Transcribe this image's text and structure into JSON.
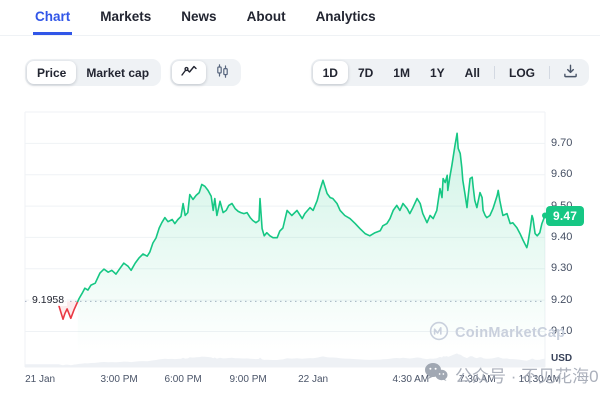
{
  "nav": {
    "items": [
      {
        "label": "Chart",
        "active": true
      },
      {
        "label": "Markets",
        "active": false
      },
      {
        "label": "News",
        "active": false
      },
      {
        "label": "About",
        "active": false
      },
      {
        "label": "Analytics",
        "active": false
      }
    ]
  },
  "controls": {
    "metric_options": [
      "Price",
      "Market cap"
    ],
    "selected_metric": "Price",
    "chart_type_options": [
      "line",
      "candlestick"
    ],
    "selected_chart_type": "line",
    "ranges": [
      "1D",
      "7D",
      "1M",
      "1Y",
      "All"
    ],
    "selected_range": "1D",
    "log_label": "LOG"
  },
  "watermarks": {
    "coinmarketcap": "CoinMarketCap",
    "wechat": "公众号 · 不见花海0"
  },
  "chart_data": {
    "type": "line",
    "ylabel": "USD",
    "ylim": [
      9.05,
      9.8
    ],
    "grid": "horizontal-only",
    "y_ticks": [
      9.7,
      9.6,
      9.5,
      9.4,
      9.3,
      9.2,
      9.1
    ],
    "x_ticks": [
      {
        "label": "21 Jan",
        "t": 0.029
      },
      {
        "label": "3:00 PM",
        "t": 0.181
      },
      {
        "label": "6:00 PM",
        "t": 0.304
      },
      {
        "label": "9:00 PM",
        "t": 0.429
      },
      {
        "label": "22 Jan",
        "t": 0.554
      },
      {
        "label": "4:30 AM",
        "t": 0.742
      },
      {
        "label": "7:30 AM",
        "t": 0.87
      },
      {
        "label": "10:30 AM",
        "t": 0.99
      }
    ],
    "baseline_price": 9.1958,
    "open_price_label": "9.1958",
    "current_price": 9.47,
    "current_price_label": "9.47",
    "colors": {
      "up": "#16c784",
      "down": "#ea3943",
      "grid": "#eff2f5",
      "baseline": "#a9b2c4"
    },
    "points": [
      [
        0.065,
        9.183
      ],
      [
        0.069,
        9.161
      ],
      [
        0.073,
        9.139
      ],
      [
        0.077,
        9.158
      ],
      [
        0.081,
        9.172
      ],
      [
        0.085,
        9.155
      ],
      [
        0.088,
        9.142
      ],
      [
        0.094,
        9.168
      ],
      [
        0.1,
        9.19
      ],
      [
        0.104,
        9.205
      ],
      [
        0.11,
        9.222
      ],
      [
        0.115,
        9.238
      ],
      [
        0.121,
        9.232
      ],
      [
        0.127,
        9.248
      ],
      [
        0.135,
        9.254
      ],
      [
        0.144,
        9.286
      ],
      [
        0.152,
        9.299
      ],
      [
        0.16,
        9.289
      ],
      [
        0.167,
        9.295
      ],
      [
        0.175,
        9.283
      ],
      [
        0.183,
        9.302
      ],
      [
        0.19,
        9.318
      ],
      [
        0.198,
        9.308
      ],
      [
        0.204,
        9.295
      ],
      [
        0.212,
        9.318
      ],
      [
        0.219,
        9.334
      ],
      [
        0.227,
        9.347
      ],
      [
        0.235,
        9.34
      ],
      [
        0.24,
        9.353
      ],
      [
        0.246,
        9.382
      ],
      [
        0.252,
        9.398
      ],
      [
        0.258,
        9.43
      ],
      [
        0.263,
        9.447
      ],
      [
        0.269,
        9.463
      ],
      [
        0.275,
        9.45
      ],
      [
        0.283,
        9.457
      ],
      [
        0.288,
        9.444
      ],
      [
        0.294,
        9.457
      ],
      [
        0.3,
        9.467
      ],
      [
        0.304,
        9.508
      ],
      [
        0.308,
        9.47
      ],
      [
        0.313,
        9.479
      ],
      [
        0.317,
        9.537
      ],
      [
        0.323,
        9.521
      ],
      [
        0.329,
        9.534
      ],
      [
        0.335,
        9.543
      ],
      [
        0.34,
        9.569
      ],
      [
        0.346,
        9.563
      ],
      [
        0.352,
        9.55
      ],
      [
        0.358,
        9.531
      ],
      [
        0.362,
        9.486
      ],
      [
        0.365,
        9.524
      ],
      [
        0.369,
        9.47
      ],
      [
        0.375,
        9.515
      ],
      [
        0.381,
        9.479
      ],
      [
        0.387,
        9.486
      ],
      [
        0.392,
        9.502
      ],
      [
        0.398,
        9.508
      ],
      [
        0.404,
        9.492
      ],
      [
        0.41,
        9.483
      ],
      [
        0.415,
        9.479
      ],
      [
        0.421,
        9.476
      ],
      [
        0.427,
        9.479
      ],
      [
        0.433,
        9.463
      ],
      [
        0.438,
        9.454
      ],
      [
        0.444,
        9.447
      ],
      [
        0.45,
        9.454
      ],
      [
        0.452,
        9.524
      ],
      [
        0.456,
        9.428
      ],
      [
        0.46,
        9.405
      ],
      [
        0.465,
        9.415
      ],
      [
        0.471,
        9.405
      ],
      [
        0.477,
        9.399
      ],
      [
        0.485,
        9.399
      ],
      [
        0.49,
        9.42
      ],
      [
        0.496,
        9.43
      ],
      [
        0.504,
        9.486
      ],
      [
        0.513,
        9.47
      ],
      [
        0.523,
        9.486
      ],
      [
        0.533,
        9.46
      ],
      [
        0.538,
        9.476
      ],
      [
        0.548,
        9.495
      ],
      [
        0.554,
        9.486
      ],
      [
        0.562,
        9.518
      ],
      [
        0.567,
        9.55
      ],
      [
        0.573,
        9.582
      ],
      [
        0.581,
        9.54
      ],
      [
        0.587,
        9.527
      ],
      [
        0.592,
        9.524
      ],
      [
        0.6,
        9.508
      ],
      [
        0.606,
        9.486
      ],
      [
        0.615,
        9.47
      ],
      [
        0.625,
        9.46
      ],
      [
        0.635,
        9.444
      ],
      [
        0.644,
        9.428
      ],
      [
        0.654,
        9.412
      ],
      [
        0.663,
        9.405
      ],
      [
        0.673,
        9.415
      ],
      [
        0.683,
        9.421
      ],
      [
        0.688,
        9.437
      ],
      [
        0.696,
        9.444
      ],
      [
        0.702,
        9.46
      ],
      [
        0.708,
        9.486
      ],
      [
        0.715,
        9.502
      ],
      [
        0.721,
        9.486
      ],
      [
        0.727,
        9.508
      ],
      [
        0.735,
        9.492
      ],
      [
        0.74,
        9.476
      ],
      [
        0.746,
        9.495
      ],
      [
        0.754,
        9.524
      ],
      [
        0.76,
        9.508
      ],
      [
        0.765,
        9.476
      ],
      [
        0.773,
        9.447
      ],
      [
        0.779,
        9.47
      ],
      [
        0.785,
        9.46
      ],
      [
        0.792,
        9.486
      ],
      [
        0.798,
        9.556
      ],
      [
        0.802,
        9.527
      ],
      [
        0.804,
        9.588
      ],
      [
        0.808,
        9.575
      ],
      [
        0.812,
        9.598
      ],
      [
        0.813,
        9.55
      ],
      [
        0.817,
        9.592
      ],
      [
        0.821,
        9.63
      ],
      [
        0.827,
        9.694
      ],
      [
        0.831,
        9.732
      ],
      [
        0.833,
        9.684
      ],
      [
        0.837,
        9.668
      ],
      [
        0.84,
        9.623
      ],
      [
        0.842,
        9.582
      ],
      [
        0.846,
        9.54
      ],
      [
        0.85,
        9.495
      ],
      [
        0.852,
        9.527
      ],
      [
        0.856,
        9.588
      ],
      [
        0.86,
        9.592
      ],
      [
        0.862,
        9.56
      ],
      [
        0.865,
        9.518
      ],
      [
        0.869,
        9.495
      ],
      [
        0.871,
        9.511
      ],
      [
        0.875,
        9.543
      ],
      [
        0.879,
        9.527
      ],
      [
        0.881,
        9.486
      ],
      [
        0.885,
        9.47
      ],
      [
        0.888,
        9.463
      ],
      [
        0.894,
        9.47
      ],
      [
        0.9,
        9.492
      ],
      [
        0.908,
        9.534
      ],
      [
        0.91,
        9.55
      ],
      [
        0.913,
        9.518
      ],
      [
        0.917,
        9.486
      ],
      [
        0.919,
        9.47
      ],
      [
        0.927,
        9.476
      ],
      [
        0.933,
        9.444
      ],
      [
        0.938,
        9.447
      ],
      [
        0.946,
        9.431
      ],
      [
        0.952,
        9.412
      ],
      [
        0.958,
        9.39
      ],
      [
        0.965,
        9.367
      ],
      [
        0.967,
        9.38
      ],
      [
        0.971,
        9.421
      ],
      [
        0.975,
        9.47
      ],
      [
        0.977,
        9.46
      ],
      [
        0.981,
        9.412
      ],
      [
        0.985,
        9.405
      ],
      [
        0.99,
        9.415
      ],
      [
        0.994,
        9.444
      ],
      [
        1.0,
        9.47
      ]
    ]
  }
}
